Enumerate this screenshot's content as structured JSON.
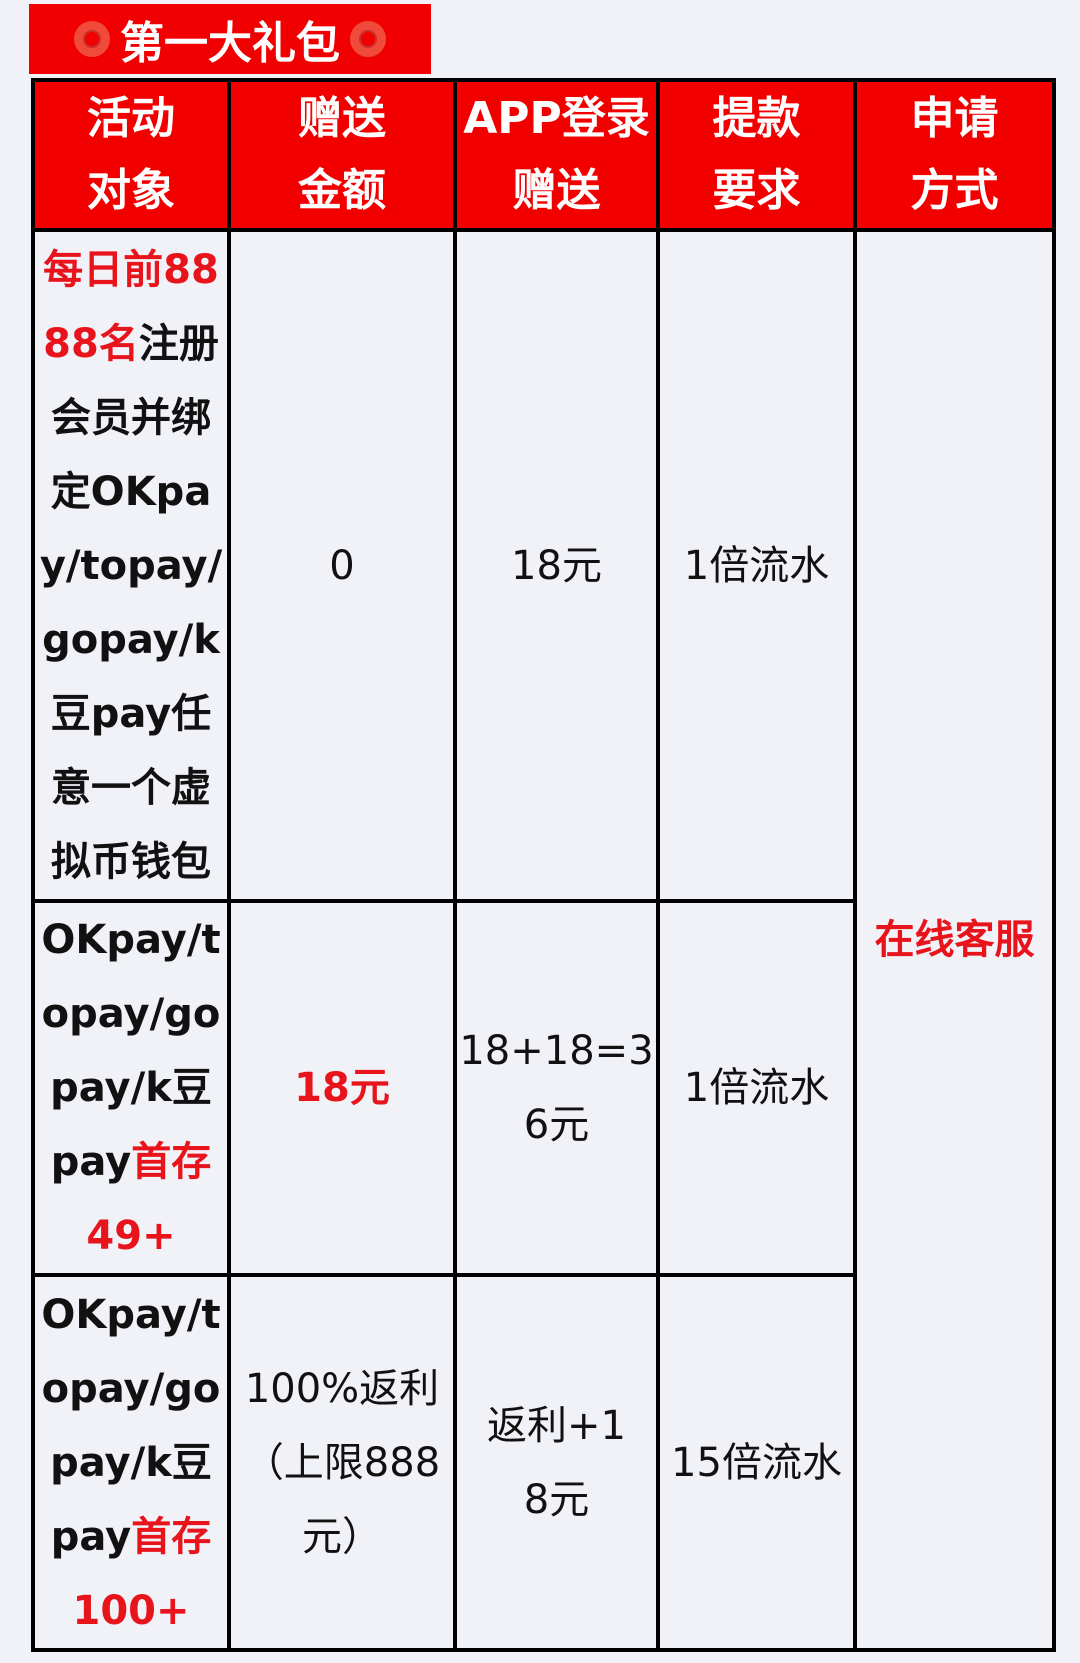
{
  "title": {
    "text": "第一大礼包",
    "icon": "red-ring-icon"
  },
  "colors": {
    "header_bg": "#f20000",
    "highlight": "#e8141c",
    "background": "#f1f2f8"
  },
  "table": {
    "headers": [
      "活动对象",
      "赠送金额",
      "APP登录赠送",
      "提款要求",
      "申请方式"
    ],
    "rows": [
      {
        "target_red": "每日前8888名",
        "target": "注册会员并绑定OKpay/topay/gopay/k豆pay任意一个虚拟币钱包",
        "amount": "0",
        "app_bonus": "18元",
        "requirement": "1倍流水"
      },
      {
        "target": "OKpay/topay/gopay/k豆pay",
        "target_red": "首存49+",
        "amount": "18元",
        "app_bonus": "18+18=36元",
        "requirement": "1倍流水"
      },
      {
        "target": "OKpay/topay/gopay/k豆pay",
        "target_red": "首存100+",
        "amount": "100%返利（上限888元）",
        "app_bonus": "返利+18元",
        "requirement": "15倍流水"
      }
    ],
    "apply_method": "在线客服"
  }
}
